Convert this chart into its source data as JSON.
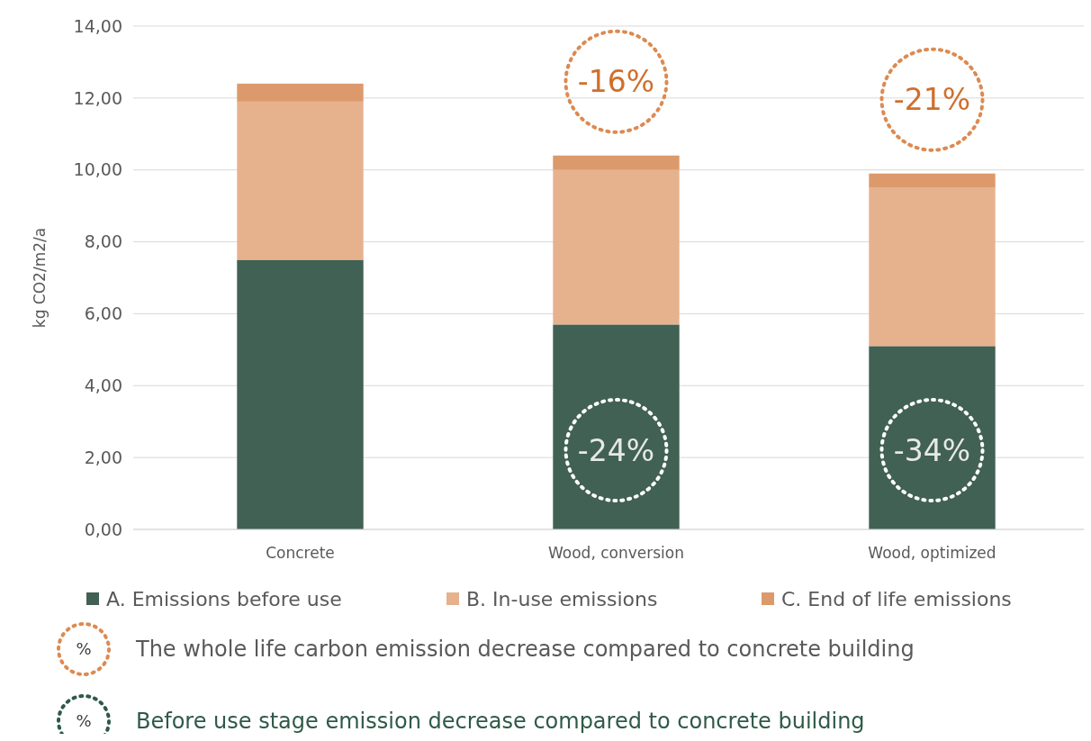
{
  "chart_data": {
    "type": "bar",
    "stacked": true,
    "ylabel": "kg CO2/m2/a",
    "categories": [
      "Concrete",
      "Wood, conversion",
      "Wood, optimized"
    ],
    "series": [
      {
        "name": "A. Emissions before use",
        "color": "#416154",
        "values": [
          7.5,
          5.7,
          5.1
        ]
      },
      {
        "name": "B. In-use emissions",
        "color": "#e6b28e",
        "values": [
          4.4,
          4.3,
          4.4
        ]
      },
      {
        "name": "C. End of life emissions",
        "color": "#dc9a6c",
        "values": [
          0.5,
          0.4,
          0.4
        ]
      }
    ],
    "ylim": [
      0,
      14
    ],
    "yticks": [
      {
        "value": 0,
        "label": "0,00"
      },
      {
        "value": 2,
        "label": "2,00"
      },
      {
        "value": 4,
        "label": "4,00"
      },
      {
        "value": 6,
        "label": "6,00"
      },
      {
        "value": 8,
        "label": "8,00"
      },
      {
        "value": 10,
        "label": "10,00"
      },
      {
        "value": 12,
        "label": "12,00"
      },
      {
        "value": 14,
        "label": "14,00"
      }
    ],
    "grid": "y",
    "legend": "bottom",
    "annotations": [
      "-16%",
      "-21%",
      "-24%",
      "-34%",
      "%",
      "The whole life carbon emission decrease compared to concrete building",
      "%",
      "Before use stage emission decrease compared to concrete building"
    ]
  }
}
